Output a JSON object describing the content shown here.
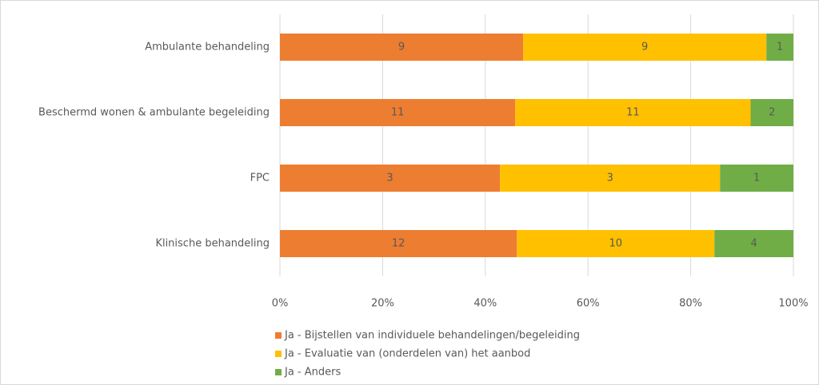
{
  "chart_data": {
    "type": "bar",
    "orientation": "horizontal",
    "stacked": "percent",
    "categories": [
      "Ambulante behandeling",
      "Beschermd wonen & ambulante begeleiding",
      "FPC",
      "Klinische behandeling"
    ],
    "series": [
      {
        "name": "Ja - Bijstellen van individuele behandelingen/begeleiding",
        "color": "#ED7D31",
        "values": [
          9,
          11,
          3,
          12
        ]
      },
      {
        "name": "Ja - Evaluatie van (onderdelen van) het aanbod",
        "color": "#FFC000",
        "values": [
          9,
          11,
          3,
          10
        ]
      },
      {
        "name": "Ja - Anders",
        "color": "#70AD47",
        "values": [
          1,
          2,
          1,
          4
        ]
      }
    ],
    "xlim": [
      0,
      100
    ],
    "xticks": [
      {
        "value": 0,
        "label": "0%"
      },
      {
        "value": 20,
        "label": "20%"
      },
      {
        "value": 40,
        "label": "40%"
      },
      {
        "value": 60,
        "label": "60%"
      },
      {
        "value": 80,
        "label": "80%"
      },
      {
        "value": 100,
        "label": "100%"
      }
    ],
    "grid": true,
    "legend": "bottom"
  }
}
